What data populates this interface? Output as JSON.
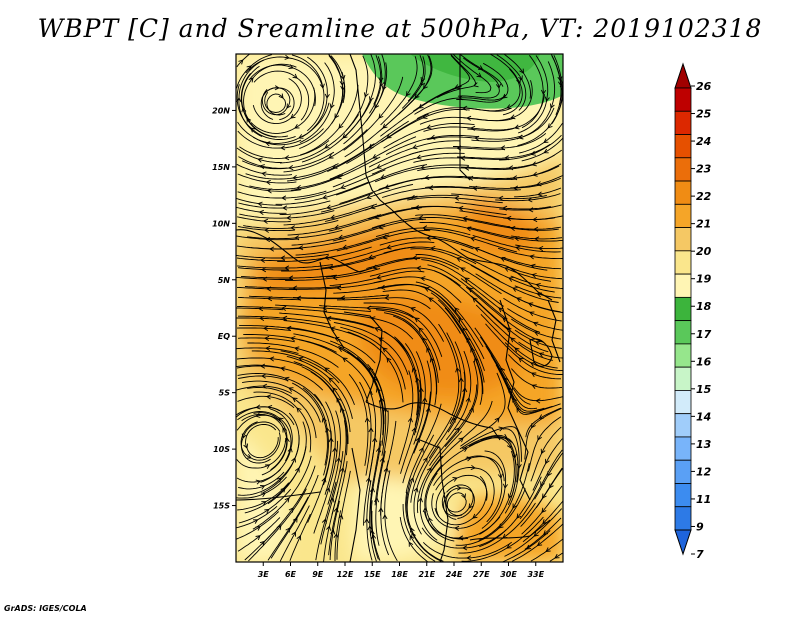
{
  "title": "WBPT [C] and Sreamline at 500hPa, VT: 2019102318",
  "footer": "GrADS: IGES/COLA",
  "map": {
    "lon_range": [
      0,
      36
    ],
    "lat_range": [
      -20,
      25
    ],
    "lat_ticks": [
      {
        "lat": 20,
        "label": "20N"
      },
      {
        "lat": 15,
        "label": "15N"
      },
      {
        "lat": 10,
        "label": "10N"
      },
      {
        "lat": 5,
        "label": "5N"
      },
      {
        "lat": 0,
        "label": "EQ"
      },
      {
        "lat": -5,
        "label": "5S"
      },
      {
        "lat": -10,
        "label": "10S"
      },
      {
        "lat": -15,
        "label": "15S"
      }
    ],
    "lon_ticks": [
      {
        "lon": 3,
        "label": "3E"
      },
      {
        "lon": 6,
        "label": "6E"
      },
      {
        "lon": 9,
        "label": "9E"
      },
      {
        "lon": 12,
        "label": "12E"
      },
      {
        "lon": 15,
        "label": "15E"
      },
      {
        "lon": 18,
        "label": "18E"
      },
      {
        "lon": 21,
        "label": "21E"
      },
      {
        "lon": 24,
        "label": "24E"
      },
      {
        "lon": 27,
        "label": "27E"
      },
      {
        "lon": 30,
        "label": "30E"
      },
      {
        "lon": 33,
        "label": "33E"
      }
    ]
  },
  "colorbar": {
    "labels": [
      "7",
      "9",
      "11",
      "12",
      "13",
      "14",
      "15",
      "16",
      "17",
      "18",
      "19",
      "20",
      "21",
      "22",
      "23",
      "24",
      "25",
      "26"
    ],
    "colors": [
      "#1e64dc",
      "#2d7ae6",
      "#3c8cf0",
      "#5aa0f5",
      "#78b4fa",
      "#a0cdfa",
      "#d2ebfa",
      "#c8f5c8",
      "#96e68c",
      "#5ac85a",
      "#3cb43c",
      "#fff5b4",
      "#fae68c",
      "#f5c864",
      "#f5a528",
      "#f08c14",
      "#eb6e0a",
      "#e65000",
      "#dc2800",
      "#be0000",
      "#a00000"
    ]
  }
}
